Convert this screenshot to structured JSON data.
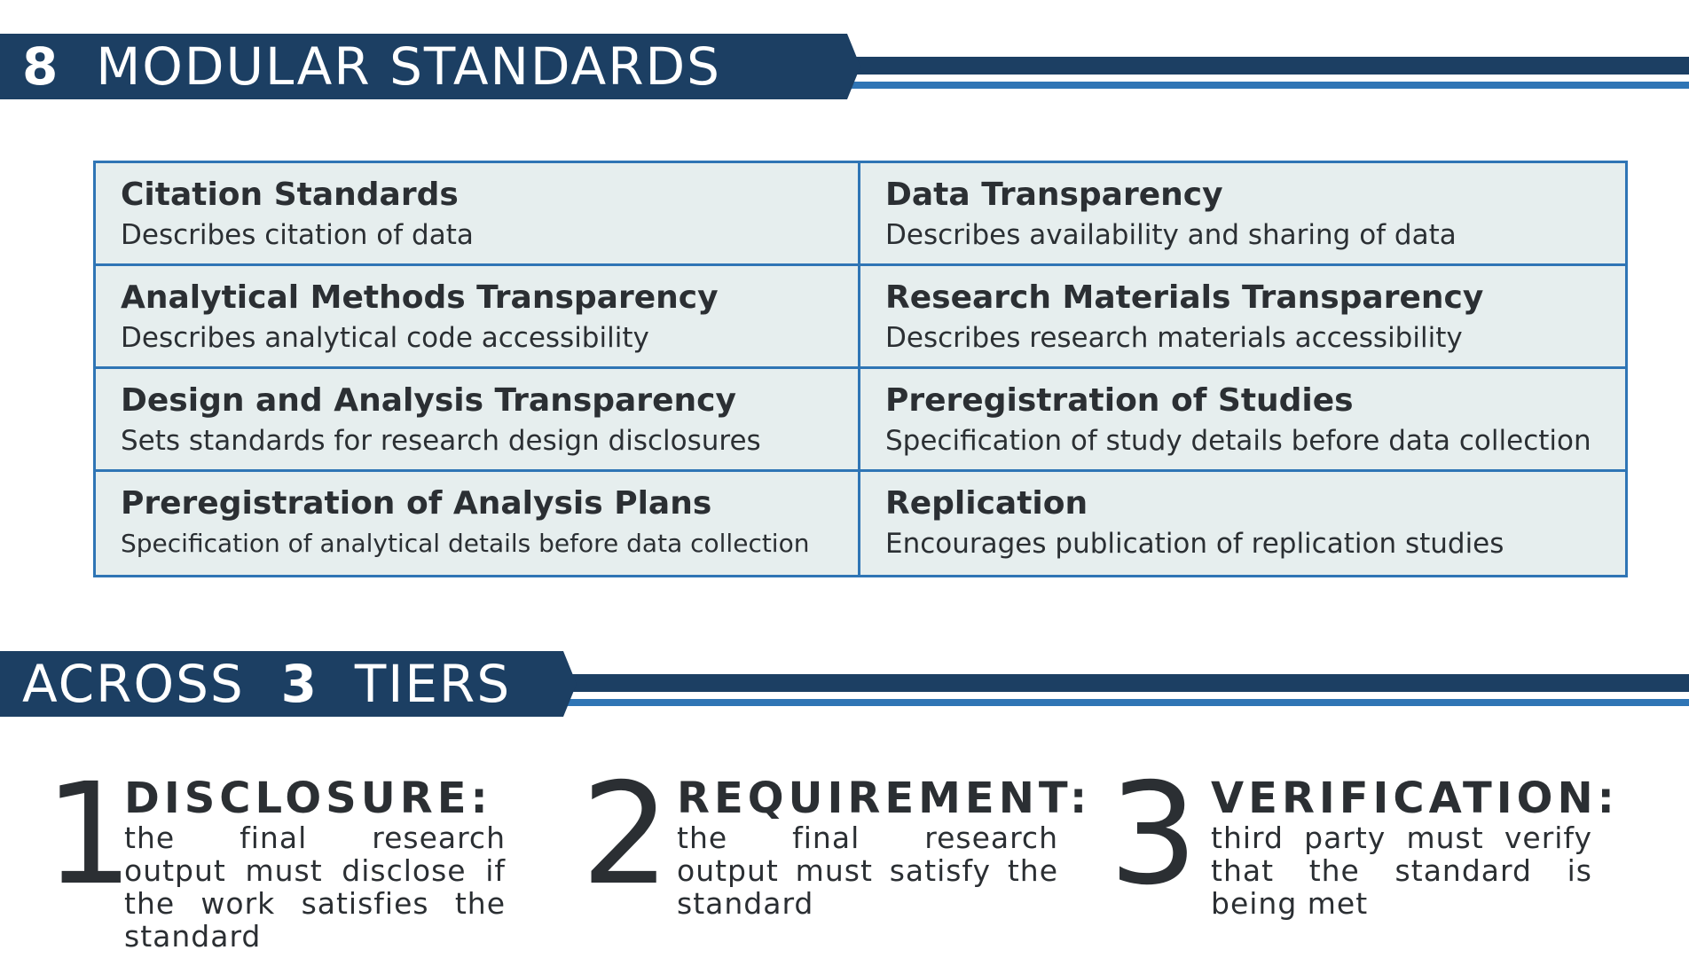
{
  "banner_standards": {
    "number": "8",
    "text": "MODULAR STANDARDS"
  },
  "standards": [
    {
      "title": "Citation Standards",
      "description": "Describes citation of data"
    },
    {
      "title": "Data Transparency",
      "description": "Describes availability and sharing of data"
    },
    {
      "title": "Analytical Methods Transparency",
      "description": "Describes analytical code accessibility"
    },
    {
      "title": "Research Materials Transparency",
      "description": "Describes research materials accessibility"
    },
    {
      "title": "Design and Analysis Transparency",
      "description": "Sets standards for research design disclosures"
    },
    {
      "title": "Preregistration of Studies",
      "description": "Specification of study details before data collection"
    },
    {
      "title": "Preregistration of Analysis Plans",
      "description": "Specification of analytical details before data collection"
    },
    {
      "title": "Replication",
      "description": "Encourages publication of replication studies"
    }
  ],
  "banner_tiers": {
    "prefix": "ACROSS",
    "number": "3",
    "suffix": "TIERS"
  },
  "tiers": [
    {
      "number": "1",
      "title": "DISCLOSURE:",
      "description": "the final research output must disclose if the work satisfies the standard"
    },
    {
      "number": "2",
      "title": "REQUIREMENT:",
      "description": "the final research output must satisfy the standard"
    },
    {
      "number": "3",
      "title": "VERIFICATION:",
      "description": "third party must verify that the standard is being met"
    }
  ],
  "colors": {
    "banner_dark": "#1c3f63",
    "banner_blue": "#2f75b5",
    "cell_background": "#e6eeee",
    "text": "#2b2f33"
  }
}
